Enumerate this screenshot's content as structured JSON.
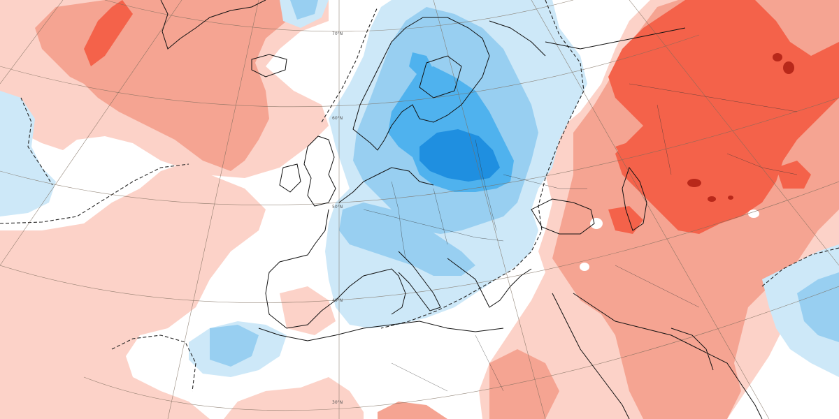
{
  "map": {
    "projection": "conic",
    "field": "anomaly",
    "colors": {
      "positive_light": "#fcd2c8",
      "positive_medium": "#f5a492",
      "positive_strong": "#f4624a",
      "positive_extreme": "#b8281a",
      "negative_light": "#cde8f8",
      "negative_medium": "#98cff1",
      "negative_strong": "#4fb2ee",
      "negative_extreme": "#1f8fe0",
      "neutral": "#ffffff",
      "coastline": "#111111",
      "graticule": "#7a6a5a"
    },
    "latitude_labels": [
      {
        "id": "lat-70",
        "text": "70°N"
      },
      {
        "id": "lat-60",
        "text": "60°N"
      },
      {
        "id": "lat-50",
        "text": "50°N"
      },
      {
        "id": "lat-40",
        "text": "40°N"
      },
      {
        "id": "lat-30",
        "text": "30°N"
      }
    ]
  }
}
